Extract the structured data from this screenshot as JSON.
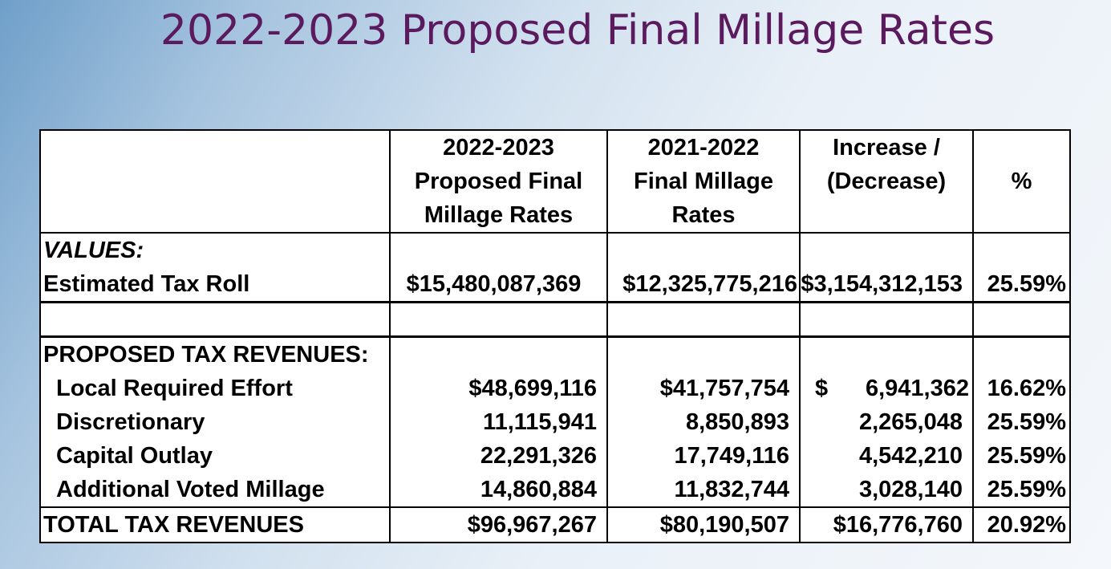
{
  "title": "2022-2023 Proposed Final Millage Rates",
  "headers": {
    "col2": [
      "2022-2023",
      "Proposed Final",
      "Millage Rates"
    ],
    "col3": [
      "2021-2022",
      "Final Millage",
      "Rates"
    ],
    "col4": [
      "Increase /",
      "(Decrease)"
    ],
    "col5": "%"
  },
  "values_section": {
    "heading": "VALUES:",
    "label": "Estimated Tax Roll",
    "c2": "$15,480,087,369",
    "c3": "$12,325,775,216",
    "c4": "$3,154,312,153",
    "c5": "25.59%"
  },
  "revenues_section": {
    "heading": "PROPOSED TAX REVENUES:",
    "rows": [
      {
        "label": "Local Required Effort",
        "c2": "$48,699,116",
        "c3": "$41,757,754",
        "c4_sign": "$",
        "c4": "6,941,362",
        "c5": "16.62%"
      },
      {
        "label": "Discretionary",
        "c2": "11,115,941",
        "c3": "8,850,893",
        "c4_sign": "",
        "c4": "2,265,048",
        "c5": "25.59%"
      },
      {
        "label": "Capital Outlay",
        "c2": "22,291,326",
        "c3": "17,749,116",
        "c4_sign": "",
        "c4": "4,542,210",
        "c5": "25.59%"
      },
      {
        "label": "Additional Voted Millage",
        "c2": "14,860,884",
        "c3": "11,832,744",
        "c4_sign": "",
        "c4": "3,028,140",
        "c5": "25.59%"
      }
    ]
  },
  "total": {
    "label": "TOTAL TAX REVENUES",
    "c2": "$96,967,267",
    "c3": "$80,190,507",
    "c4": "$16,776,760",
    "c5": "20.92%"
  }
}
